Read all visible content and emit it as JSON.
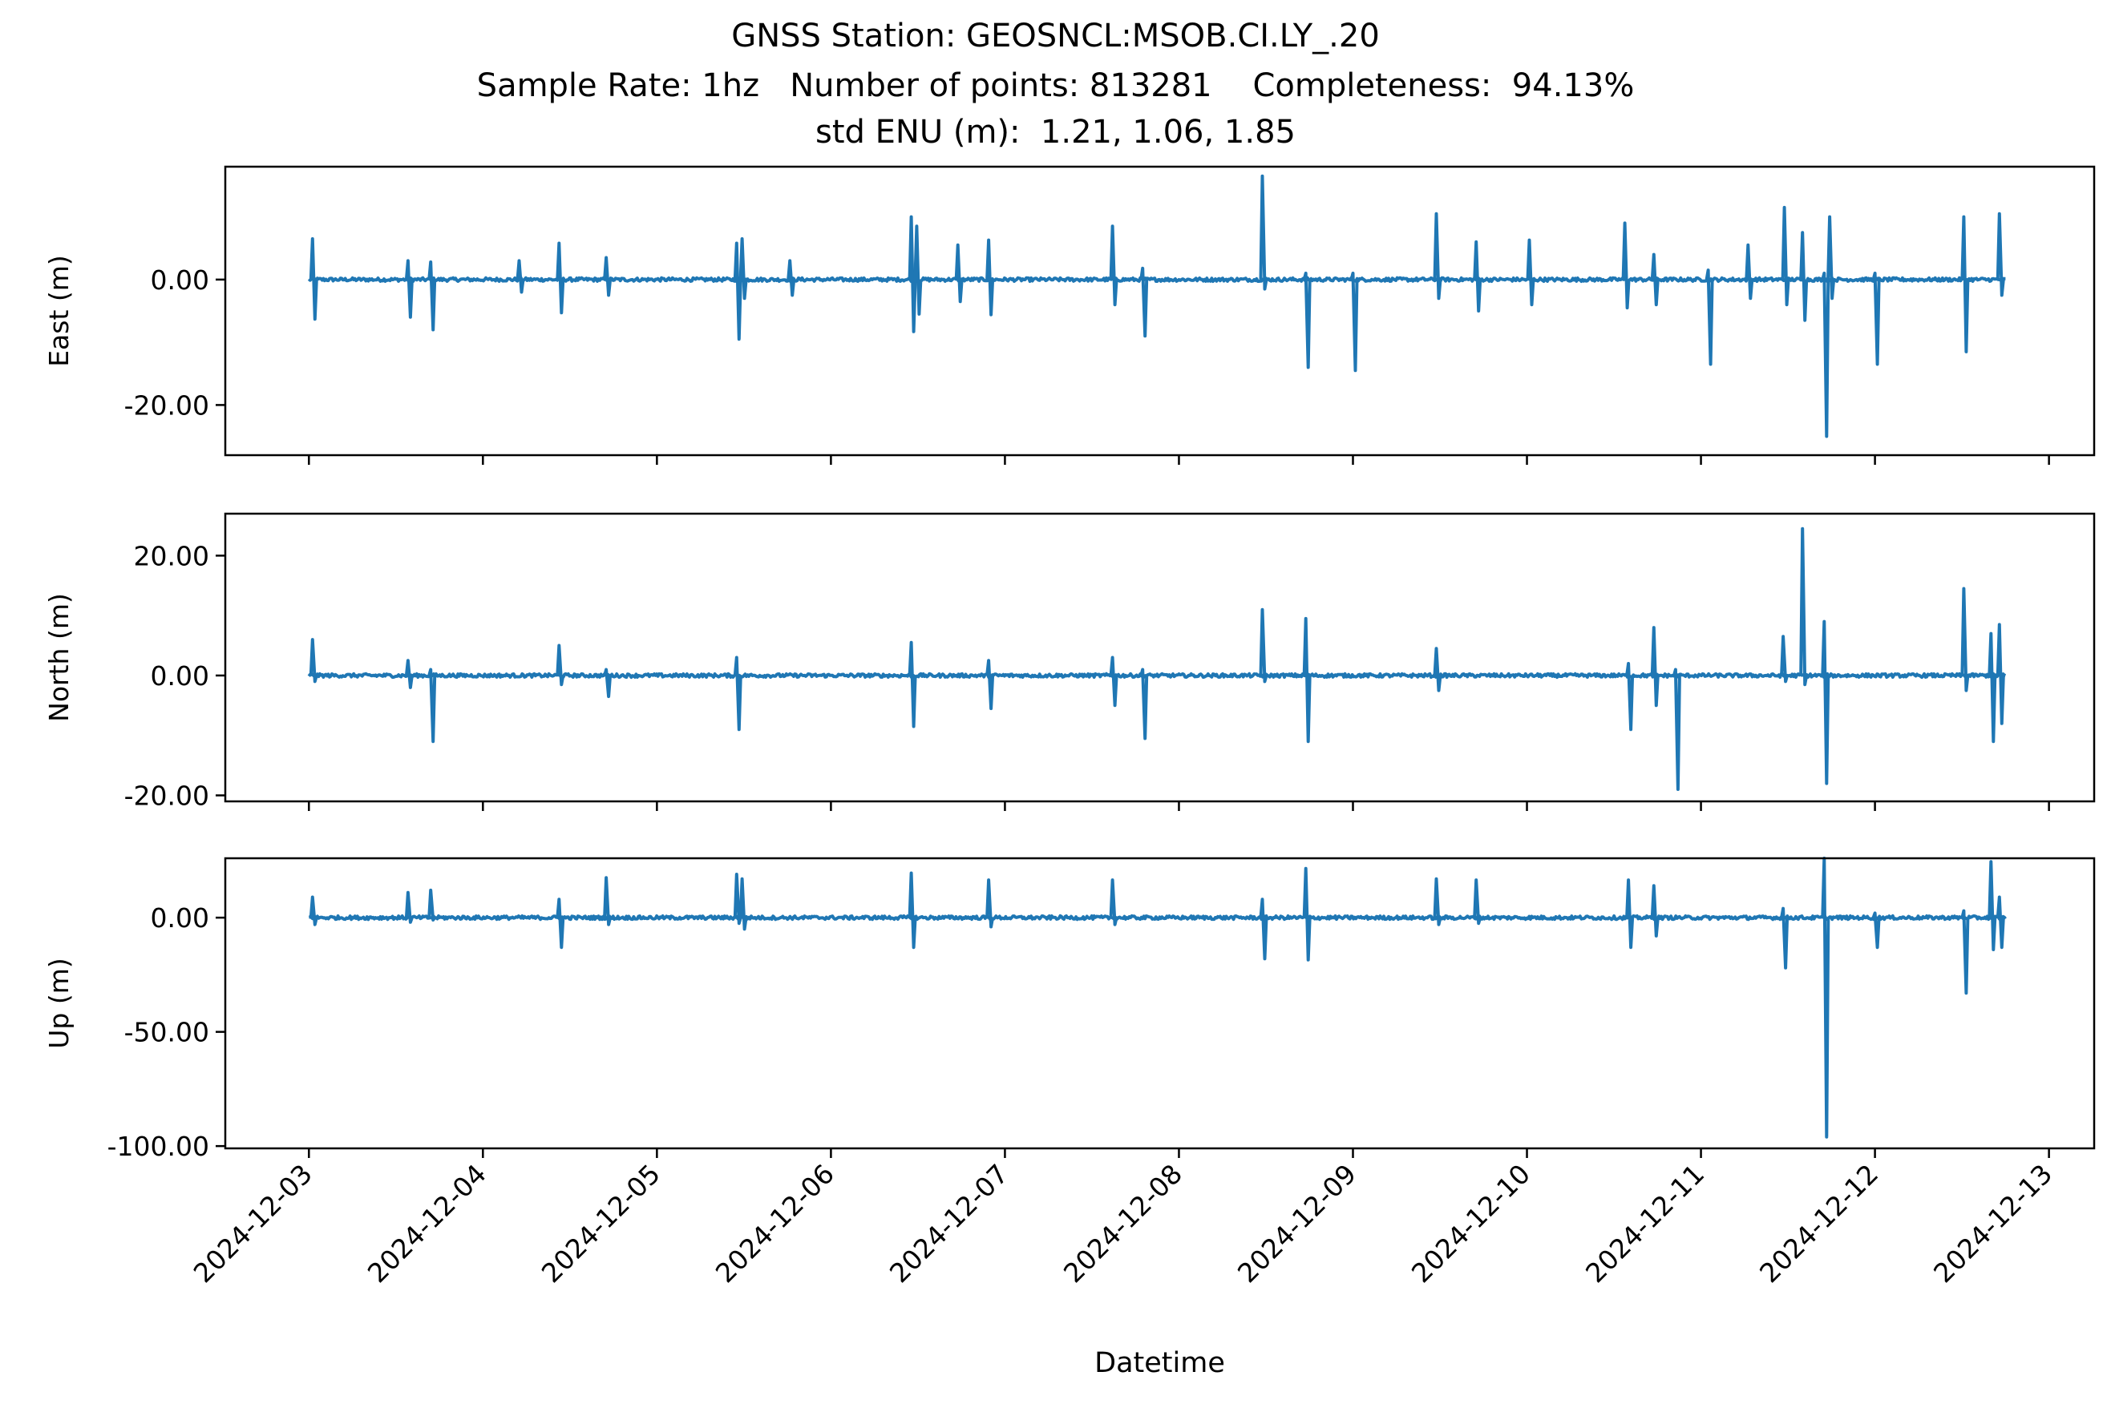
{
  "title_lines": [
    "GNSS Station: GEOSNCL:MSOB.CI.LY_.20",
    "Sample Rate: 1hz   Number of points: 813281    Completeness:  94.13%",
    "std ENU (m):  1.21, 1.06, 1.85"
  ],
  "chart_data": {
    "type": "line",
    "xlabel": "Datetime",
    "x_ticks": [
      "2024-12-03",
      "2024-12-04",
      "2024-12-05",
      "2024-12-06",
      "2024-12-07",
      "2024-12-08",
      "2024-12-09",
      "2024-12-10",
      "2024-12-11",
      "2024-12-12",
      "2024-12-13"
    ],
    "xlim": [
      "2024-12-02T12:28",
      "2024-12-13T06:14"
    ],
    "line_color": "#1f77b4",
    "grid": false,
    "panels": [
      {
        "ylabel": "East (m)",
        "ylim": [
          -28,
          18
        ],
        "y_ticks": [
          0,
          -20
        ],
        "y_tick_labels": [
          "0.00",
          "-20.00"
        ],
        "spikes": [
          {
            "t": "2024-12-03T00:30",
            "hi": 6.5,
            "lo": -6.3
          },
          {
            "t": "2024-12-03T13:40",
            "hi": 3.0,
            "lo": -6.0
          },
          {
            "t": "2024-12-03T16:48",
            "hi": 2.8,
            "lo": -8.0
          },
          {
            "t": "2024-12-04T05:00",
            "hi": 3.0,
            "lo": -2.0
          },
          {
            "t": "2024-12-04T10:30",
            "hi": 5.8,
            "lo": -5.3
          },
          {
            "t": "2024-12-04T17:00",
            "hi": 3.5,
            "lo": -2.5
          },
          {
            "t": "2024-12-05T11:00",
            "hi": 5.8,
            "lo": -9.5
          },
          {
            "t": "2024-12-05T11:45",
            "hi": 6.5,
            "lo": -3.0
          },
          {
            "t": "2024-12-05T18:20",
            "hi": 3.0,
            "lo": -2.5
          },
          {
            "t": "2024-12-06T11:05",
            "hi": 10.0,
            "lo": -8.3
          },
          {
            "t": "2024-12-06T11:50",
            "hi": 8.5,
            "lo": -5.5
          },
          {
            "t": "2024-12-06T17:30",
            "hi": 5.5,
            "lo": -3.5
          },
          {
            "t": "2024-12-06T21:45",
            "hi": 6.3,
            "lo": -5.6
          },
          {
            "t": "2024-12-07T14:50",
            "hi": 8.5,
            "lo": -4.0
          },
          {
            "t": "2024-12-07T19:00",
            "hi": 1.8,
            "lo": -9.0
          },
          {
            "t": "2024-12-08T11:30",
            "hi": 16.5,
            "lo": -1.5
          },
          {
            "t": "2024-12-08T17:30",
            "hi": 1.0,
            "lo": -14.0
          },
          {
            "t": "2024-12-09T00:00",
            "hi": 1.0,
            "lo": -14.5
          },
          {
            "t": "2024-12-09T11:30",
            "hi": 10.5,
            "lo": -3.0
          },
          {
            "t": "2024-12-09T17:00",
            "hi": 6.0,
            "lo": -5.0
          },
          {
            "t": "2024-12-10T00:20",
            "hi": 6.3,
            "lo": -4.0
          },
          {
            "t": "2024-12-10T13:30",
            "hi": 9.0,
            "lo": -4.5
          },
          {
            "t": "2024-12-10T17:30",
            "hi": 4.0,
            "lo": -4.0
          },
          {
            "t": "2024-12-11T01:00",
            "hi": 1.5,
            "lo": -13.5
          },
          {
            "t": "2024-12-11T06:30",
            "hi": 5.5,
            "lo": -3.0
          },
          {
            "t": "2024-12-11T11:30",
            "hi": 11.5,
            "lo": -4.0
          },
          {
            "t": "2024-12-11T14:00",
            "hi": 7.5,
            "lo": -6.5
          },
          {
            "t": "2024-12-11T17:00",
            "hi": 1.0,
            "lo": -25.0
          },
          {
            "t": "2024-12-11T17:45",
            "hi": 10.0,
            "lo": -3.0
          },
          {
            "t": "2024-12-12T00:00",
            "hi": 1.0,
            "lo": -13.5
          },
          {
            "t": "2024-12-12T12:15",
            "hi": 10.0,
            "lo": -11.5
          },
          {
            "t": "2024-12-12T17:10",
            "hi": 10.5,
            "lo": -2.5
          }
        ]
      },
      {
        "ylabel": "North (m)",
        "ylim": [
          -21,
          27
        ],
        "y_ticks": [
          20,
          0,
          -20
        ],
        "y_tick_labels": [
          "20.00",
          "0.00",
          "-20.00"
        ],
        "spikes": [
          {
            "t": "2024-12-03T00:30",
            "hi": 6.0,
            "lo": -1.0
          },
          {
            "t": "2024-12-03T13:40",
            "hi": 2.5,
            "lo": -2.0
          },
          {
            "t": "2024-12-03T16:48",
            "hi": 1.0,
            "lo": -11.0
          },
          {
            "t": "2024-12-04T10:30",
            "hi": 5.0,
            "lo": -1.5
          },
          {
            "t": "2024-12-04T17:00",
            "hi": 1.0,
            "lo": -3.5
          },
          {
            "t": "2024-12-05T11:00",
            "hi": 3.0,
            "lo": -9.0
          },
          {
            "t": "2024-12-06T11:05",
            "hi": 5.5,
            "lo": -8.5
          },
          {
            "t": "2024-12-06T21:45",
            "hi": 2.5,
            "lo": -5.5
          },
          {
            "t": "2024-12-07T14:50",
            "hi": 3.0,
            "lo": -5.0
          },
          {
            "t": "2024-12-07T19:00",
            "hi": 1.0,
            "lo": -10.5
          },
          {
            "t": "2024-12-08T11:30",
            "hi": 11.0,
            "lo": -1.0
          },
          {
            "t": "2024-12-08T17:30",
            "hi": 9.5,
            "lo": -11.0
          },
          {
            "t": "2024-12-09T11:30",
            "hi": 4.5,
            "lo": -2.5
          },
          {
            "t": "2024-12-10T14:00",
            "hi": 2.0,
            "lo": -9.0
          },
          {
            "t": "2024-12-10T17:30",
            "hi": 8.0,
            "lo": -5.0
          },
          {
            "t": "2024-12-10T20:30",
            "hi": 1.0,
            "lo": -19.0
          },
          {
            "t": "2024-12-11T11:20",
            "hi": 6.5,
            "lo": -1.0
          },
          {
            "t": "2024-12-11T14:00",
            "hi": 24.5,
            "lo": -1.5
          },
          {
            "t": "2024-12-11T17:00",
            "hi": 9.0,
            "lo": -18.0
          },
          {
            "t": "2024-12-12T12:15",
            "hi": 14.5,
            "lo": -2.5
          },
          {
            "t": "2024-12-12T16:00",
            "hi": 7.0,
            "lo": -11.0
          },
          {
            "t": "2024-12-12T17:10",
            "hi": 8.5,
            "lo": -8.0
          }
        ]
      },
      {
        "ylabel": "Up (m)",
        "ylim": [
          -101,
          26
        ],
        "y_ticks": [
          0,
          -50,
          -100
        ],
        "y_tick_labels": [
          "0.00",
          "-50.00",
          "-100.00"
        ],
        "spikes": [
          {
            "t": "2024-12-03T00:30",
            "hi": 9.0,
            "lo": -3.0
          },
          {
            "t": "2024-12-03T13:40",
            "hi": 11.0,
            "lo": -2.0
          },
          {
            "t": "2024-12-03T16:48",
            "hi": 12.0,
            "lo": -1.0
          },
          {
            "t": "2024-12-04T10:30",
            "hi": 8.0,
            "lo": -13.0
          },
          {
            "t": "2024-12-04T17:00",
            "hi": 17.5,
            "lo": -3.0
          },
          {
            "t": "2024-12-05T11:00",
            "hi": 19.0,
            "lo": -2.5
          },
          {
            "t": "2024-12-05T11:45",
            "hi": 17.0,
            "lo": -5.0
          },
          {
            "t": "2024-12-06T11:05",
            "hi": 19.5,
            "lo": -13.0
          },
          {
            "t": "2024-12-06T21:45",
            "hi": 16.5,
            "lo": -4.0
          },
          {
            "t": "2024-12-07T14:50",
            "hi": 16.5,
            "lo": -3.0
          },
          {
            "t": "2024-12-08T11:30",
            "hi": 8.0,
            "lo": -18.0
          },
          {
            "t": "2024-12-08T17:30",
            "hi": 21.5,
            "lo": -18.5
          },
          {
            "t": "2024-12-09T11:30",
            "hi": 17.0,
            "lo": -3.0
          },
          {
            "t": "2024-12-09T17:00",
            "hi": 16.5,
            "lo": -2.5
          },
          {
            "t": "2024-12-10T14:00",
            "hi": 16.5,
            "lo": -13.0
          },
          {
            "t": "2024-12-10T17:30",
            "hi": 14.0,
            "lo": -8.0
          },
          {
            "t": "2024-12-11T11:20",
            "hi": 4.0,
            "lo": -22.0
          },
          {
            "t": "2024-12-11T17:00",
            "hi": 26.0,
            "lo": -96.0
          },
          {
            "t": "2024-12-12T00:00",
            "hi": 2.0,
            "lo": -13.0
          },
          {
            "t": "2024-12-12T12:15",
            "hi": 3.0,
            "lo": -33.0
          },
          {
            "t": "2024-12-12T16:00",
            "hi": 24.5,
            "lo": -14.0
          },
          {
            "t": "2024-12-12T17:10",
            "hi": 9.0,
            "lo": -13.0
          }
        ]
      }
    ]
  }
}
